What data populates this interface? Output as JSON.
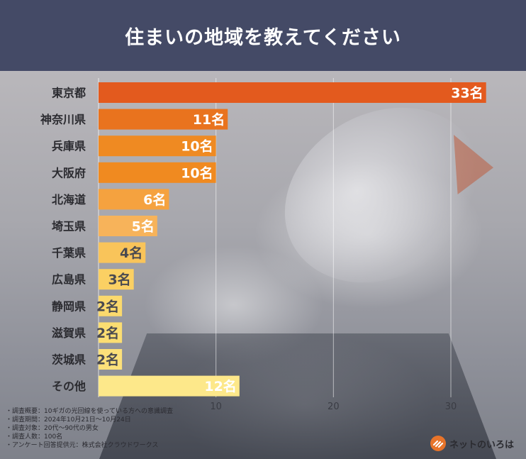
{
  "header": {
    "title": "住まいの地域を教えてください"
  },
  "chart_data": {
    "type": "bar",
    "orientation": "horizontal",
    "title": "住まいの地域を教えてください",
    "categories": [
      "東京都",
      "神奈川県",
      "兵庫県",
      "大阪府",
      "北海道",
      "埼玉県",
      "千葉県",
      "広島県",
      "静岡県",
      "滋賀県",
      "茨城県",
      "その他"
    ],
    "values": [
      33,
      11,
      10,
      10,
      6,
      5,
      4,
      3,
      2,
      2,
      2,
      12
    ],
    "value_labels": [
      "33名",
      "11名",
      "10名",
      "10名",
      "6名",
      "5名",
      "4名",
      "3名",
      "2名",
      "2名",
      "2名",
      "12名"
    ],
    "colors": [
      "#e35a1e",
      "#e9731e",
      "#ef8a22",
      "#f08a20",
      "#f5a23f",
      "#f7b35a",
      "#f9c45a",
      "#fbd063",
      "#fbd96d",
      "#fbdd72",
      "#fce07a",
      "#fde88a"
    ],
    "xlim": [
      0,
      34
    ],
    "xticks": [
      10,
      20,
      30
    ],
    "xtick_labels": [
      "10",
      "20",
      "30"
    ],
    "grid": true,
    "legend": "none",
    "label_color_dark": "#4a4a50",
    "label_color_light": "#ffffff"
  },
  "notes": [
    "・調査概要：10ギガの光回線を使っている方への意識調査",
    "・調査期間：2024年10月21日〜10月24日",
    "・調査対象：20代〜90代の男女",
    "・調査人数：100名",
    "・アンケート回答提供元：株式会社クラウドワークス"
  ],
  "brand": {
    "name": "ネットのいろは",
    "color": "#e8742a"
  }
}
